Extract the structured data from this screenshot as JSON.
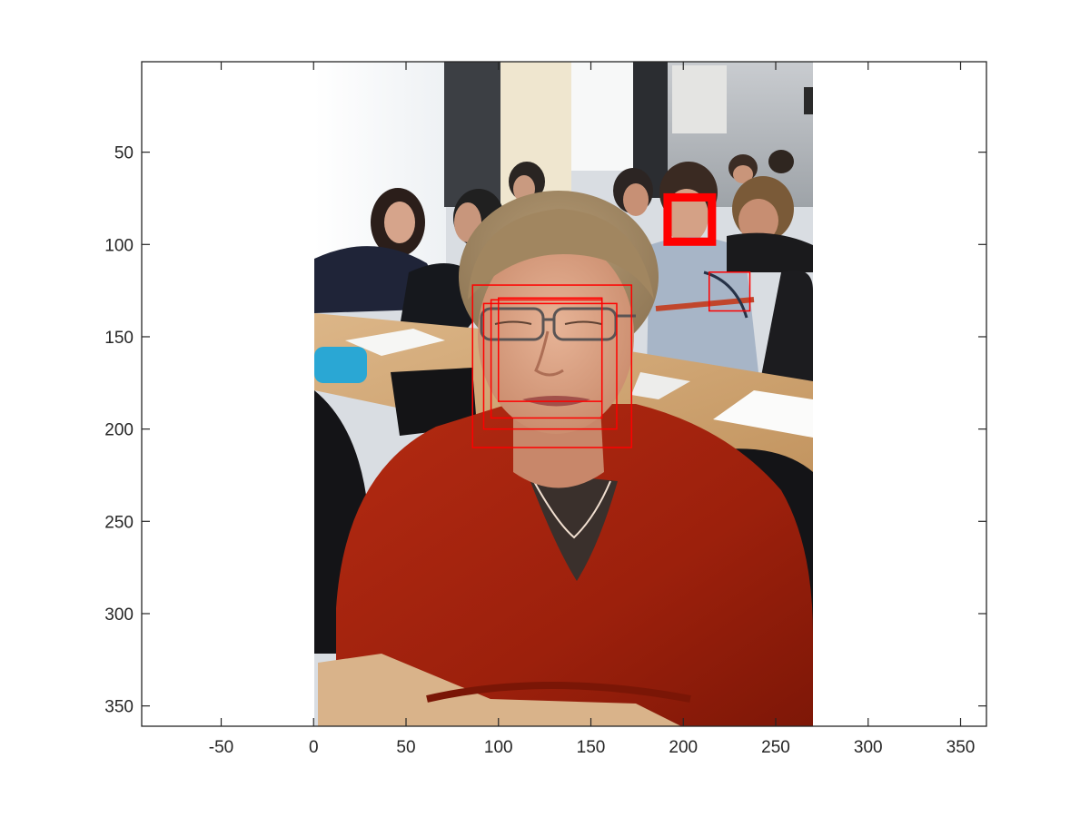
{
  "chart_data": {
    "type": "image",
    "title": "",
    "xlabel": "",
    "ylabel": "",
    "xlim": [
      -93,
      364
    ],
    "ylim": [
      361,
      1
    ],
    "y_reversed": true,
    "grid": false,
    "xticks": [
      -50,
      0,
      50,
      100,
      150,
      200,
      250,
      300,
      350
    ],
    "yticks": [
      50,
      100,
      150,
      200,
      250,
      300,
      350
    ],
    "xtick_labels": [
      "-50",
      "0",
      "50",
      "100",
      "150",
      "200",
      "250",
      "300",
      "350"
    ],
    "ytick_labels": [
      "50",
      "100",
      "150",
      "200",
      "250",
      "300",
      "350"
    ],
    "image": {
      "description": "classroom photograph, young man in red sweater in foreground, students behind",
      "x_extent": [
        0,
        270
      ],
      "y_extent": [
        0,
        361
      ]
    },
    "detections": [
      {
        "label": "face",
        "x": 86,
        "y": 122,
        "w": 86,
        "h": 88,
        "line_width": 1.5
      },
      {
        "label": "face",
        "x": 92,
        "y": 132,
        "w": 72,
        "h": 68,
        "line_width": 1.5
      },
      {
        "label": "face",
        "x": 96,
        "y": 130,
        "w": 60,
        "h": 64,
        "line_width": 1.5
      },
      {
        "label": "face",
        "x": 100,
        "y": 129,
        "w": 56,
        "h": 56,
        "line_width": 1.5
      },
      {
        "label": "face",
        "x": 190,
        "y": 73,
        "w": 27,
        "h": 27,
        "line_width": 3
      },
      {
        "label": "face",
        "x": 191,
        "y": 74,
        "w": 25,
        "h": 25,
        "line_width": 3
      },
      {
        "label": "face",
        "x": 192,
        "y": 75,
        "w": 23,
        "h": 23,
        "line_width": 3
      },
      {
        "label": "face",
        "x": 193,
        "y": 76,
        "w": 21,
        "h": 21,
        "line_width": 3
      },
      {
        "label": "face",
        "x": 214,
        "y": 115,
        "w": 22,
        "h": 21,
        "line_width": 1.5
      }
    ],
    "colors": {
      "box": "#ff0000",
      "axis": "#262626",
      "background": "#ffffff"
    }
  }
}
